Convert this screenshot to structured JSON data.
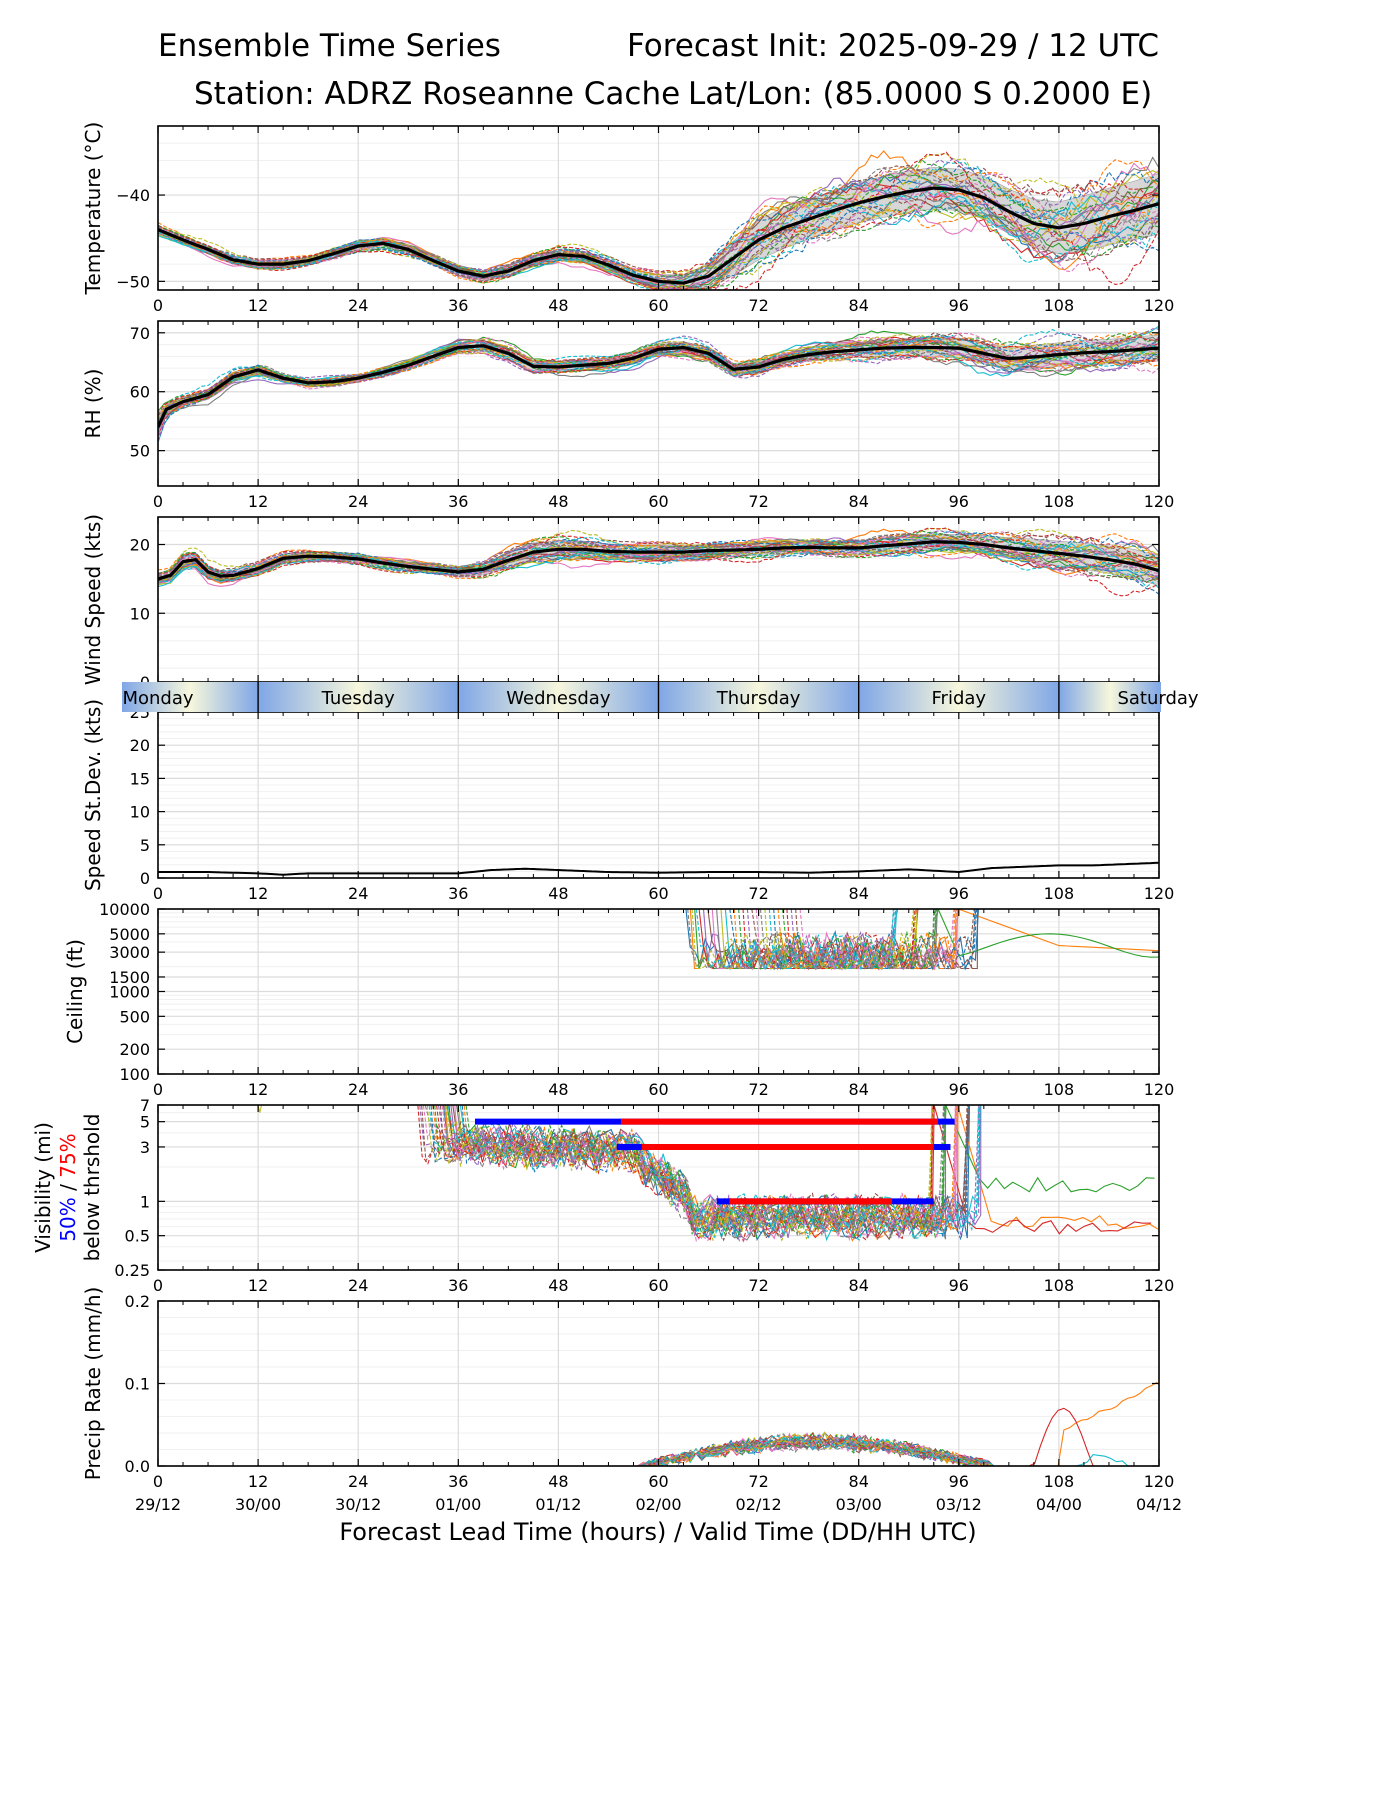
{
  "header": {
    "title_left": "Ensemble Time Series",
    "title_right": "Forecast Init: 2025-09-29 / 12 UTC",
    "station": "Station: ADRZ Roseanne Cache",
    "latlon": "Lat/Lon: (85.0000 S 0.2000 E)"
  },
  "chart_data": {
    "type": "line",
    "title": "Ensemble Time Series",
    "xlabel": "Forecast Lead Time (hours) / Valid Time (DD/HH UTC)",
    "x_ticks": [
      0,
      12,
      24,
      36,
      48,
      60,
      72,
      84,
      96,
      108,
      120
    ],
    "x_tick_labels": [
      "0",
      "12",
      "24",
      "36",
      "48",
      "60",
      "72",
      "84",
      "96",
      "108",
      "120"
    ],
    "valid_time_labels": [
      "29/12",
      "30/00",
      "30/12",
      "01/00",
      "01/12",
      "02/00",
      "02/12",
      "03/00",
      "03/12",
      "04/00",
      "04/12"
    ],
    "xlim": [
      0,
      120
    ],
    "days": [
      "Monday",
      "Tuesday",
      "Wednesday",
      "Thursday",
      "Friday",
      "Saturday"
    ],
    "panels": [
      {
        "id": "temp",
        "ylabel": "Temperature (°C)",
        "ylim": [
          -51,
          -32
        ],
        "yticks": [
          -50,
          -40
        ],
        "ytick_labels": [
          "−50",
          "−40"
        ],
        "mean_x": [
          0,
          3,
          6,
          9,
          12,
          15,
          18,
          21,
          24,
          27,
          30,
          33,
          36,
          39,
          42,
          45,
          48,
          51,
          54,
          57,
          60,
          63,
          66,
          69,
          72,
          75,
          78,
          81,
          84,
          87,
          90,
          93,
          96,
          99,
          102,
          105,
          108,
          111,
          114,
          117,
          120
        ],
        "mean_y": [
          -44,
          -45.2,
          -46.3,
          -47.5,
          -48,
          -48,
          -47.6,
          -46.8,
          -45.9,
          -45.6,
          -46.3,
          -47.6,
          -48.8,
          -49.4,
          -48.8,
          -47.6,
          -46.9,
          -47.1,
          -48.1,
          -49.3,
          -50,
          -50.2,
          -49.4,
          -47.3,
          -45.2,
          -43.8,
          -42.8,
          -41.8,
          -40.9,
          -40.2,
          -39.6,
          -39.2,
          -39.4,
          -40.3,
          -41.9,
          -43.3,
          -43.8,
          -43.3,
          -42.5,
          -41.8,
          -41
        ],
        "spread": [
          0.5,
          0.4,
          0.4,
          0.4,
          0.4,
          0.4,
          0.4,
          0.5,
          0.5,
          0.5,
          0.5,
          0.5,
          0.5,
          0.5,
          0.6,
          0.6,
          0.6,
          0.6,
          0.7,
          0.7,
          0.8,
          1.0,
          1.4,
          2.0,
          2.3,
          2.4,
          2.3,
          2.3,
          2.3,
          2.4,
          2.4,
          2.4,
          2.4,
          2.5,
          2.6,
          2.8,
          3.0,
          3.2,
          3.3,
          3.4,
          3.5
        ]
      },
      {
        "id": "rh",
        "ylabel": "RH (%)",
        "ylim": [
          44,
          72
        ],
        "yticks": [
          50,
          60,
          70
        ],
        "ytick_labels": [
          "50",
          "60",
          "70"
        ],
        "mean_x": [
          0,
          1,
          3,
          6,
          9,
          12,
          15,
          18,
          21,
          24,
          27,
          30,
          33,
          36,
          39,
          42,
          45,
          48,
          51,
          54,
          57,
          60,
          63,
          66,
          69,
          72,
          75,
          78,
          81,
          84,
          87,
          90,
          93,
          96,
          99,
          102,
          105,
          108,
          111,
          114,
          117,
          120
        ],
        "mean_y": [
          54,
          57,
          58.3,
          59.5,
          62.5,
          63.7,
          62.3,
          61.5,
          61.7,
          62.3,
          63.3,
          64.5,
          66,
          67.5,
          67.8,
          66.5,
          64.3,
          64.2,
          64.5,
          64.8,
          65.7,
          67.2,
          67.5,
          66.5,
          63.8,
          64.2,
          65.5,
          66.3,
          66.8,
          67.1,
          67.4,
          67.5,
          67.5,
          67.4,
          66.5,
          65.6,
          65.9,
          66.3,
          66.6,
          66.8,
          67.1,
          67.4
        ],
        "spread": [
          1.6,
          1.0,
          0.8,
          0.8,
          0.8,
          0.8,
          0.6,
          0.5,
          0.5,
          0.5,
          0.6,
          0.6,
          0.7,
          0.8,
          0.9,
          0.9,
          0.9,
          0.9,
          0.9,
          0.9,
          1.0,
          1.0,
          1.0,
          1.0,
          1.0,
          1.0,
          1.0,
          1.1,
          1.2,
          1.3,
          1.4,
          1.5,
          1.6,
          1.7,
          1.8,
          1.9,
          2.0,
          2.0,
          2.1,
          2.1,
          2.2,
          2.2
        ]
      },
      {
        "id": "wind",
        "ylabel": "Wind Speed (kts)",
        "ylim": [
          0,
          24
        ],
        "yticks": [
          0,
          10,
          20
        ],
        "ytick_labels": [
          "0",
          "10",
          "20"
        ],
        "mean_x": [
          0,
          1.5,
          3,
          4.5,
          6,
          7.5,
          9,
          12,
          15,
          18,
          21,
          24,
          27,
          30,
          33,
          36,
          39,
          42,
          45,
          48,
          51,
          54,
          57,
          60,
          63,
          66,
          69,
          72,
          75,
          78,
          81,
          84,
          87,
          90,
          93,
          96,
          99,
          102,
          105,
          108,
          111,
          114,
          117,
          120
        ],
        "mean_y": [
          15,
          15.5,
          17.5,
          17.8,
          16,
          15.4,
          15.5,
          16.5,
          18,
          18.3,
          18.2,
          17.9,
          17.3,
          16.8,
          16.4,
          16,
          16.4,
          17.7,
          18.9,
          19.3,
          19.3,
          19,
          18.9,
          18.9,
          18.9,
          19.1,
          19.2,
          19.3,
          19.5,
          19.6,
          19.5,
          19.5,
          19.8,
          20.1,
          20.4,
          20.3,
          20,
          19.5,
          19.1,
          18.7,
          18.3,
          17.8,
          17.2,
          16.2
        ],
        "spread": [
          0.8,
          0.8,
          0.9,
          0.9,
          0.8,
          0.7,
          0.7,
          0.7,
          0.6,
          0.6,
          0.6,
          0.6,
          0.6,
          0.6,
          0.6,
          0.6,
          0.8,
          1.1,
          1.3,
          1.3,
          1.2,
          1.1,
          1.0,
          1.0,
          0.9,
          0.9,
          0.9,
          0.9,
          0.9,
          0.9,
          0.9,
          1.0,
          1.1,
          1.2,
          1.2,
          1.1,
          1.3,
          1.5,
          1.7,
          1.8,
          1.9,
          2.0,
          2.1,
          2.2
        ]
      },
      {
        "id": "stddev",
        "ylabel": "Speed St.Dev. (kts)",
        "ylim": [
          0,
          25
        ],
        "yticks": [
          0,
          5,
          10,
          15,
          20,
          25
        ],
        "ytick_labels": [
          "0",
          "5",
          "10",
          "15",
          "20",
          "25"
        ],
        "mean_x": [
          0,
          6,
          12,
          15,
          18,
          24,
          30,
          36,
          40,
          44,
          48,
          54,
          60,
          66,
          72,
          78,
          84,
          90,
          96,
          100,
          104,
          108,
          112,
          116,
          120
        ],
        "mean_y": [
          0.9,
          0.9,
          0.7,
          0.5,
          0.7,
          0.7,
          0.7,
          0.7,
          1.2,
          1.4,
          1.2,
          0.9,
          0.8,
          0.9,
          0.9,
          0.8,
          1.0,
          1.3,
          0.9,
          1.5,
          1.7,
          1.9,
          1.9,
          2.1,
          2.3
        ]
      },
      {
        "id": "ceiling",
        "ylabel": "Ceiling (ft)",
        "scale": "log",
        "ylim": [
          100,
          10000
        ],
        "yticks": [
          100,
          200,
          500,
          1000,
          1500,
          3000,
          5000,
          10000
        ],
        "ytick_labels": [
          "100",
          "200",
          "500",
          "1000",
          "1500",
          "3000",
          "5000",
          "10000"
        ]
      },
      {
        "id": "vis",
        "ylabel": "Visibility (mi)",
        "ylabel_pct_50": "50%",
        "ylabel_sep": " / ",
        "ylabel_pct_75": "75%",
        "ylabel_thresh": "below thrshold",
        "scale": "log",
        "ylim": [
          0.25,
          7
        ],
        "yticks": [
          0.25,
          0.5,
          1,
          3,
          5,
          7
        ],
        "ytick_labels": [
          "0.25",
          "0.5",
          "1",
          "3",
          "5",
          "7"
        ],
        "thresholds": [
          {
            "level": 5,
            "p50": [
              38,
              95.5
            ],
            "p75": [
              55.5,
              93.5
            ]
          },
          {
            "level": 3,
            "p50": [
              55,
              95
            ],
            "p75": [
              58,
              93
            ]
          },
          {
            "level": 1,
            "p50": [
              67,
              93
            ],
            "p75": [
              68.5,
              88
            ]
          }
        ]
      },
      {
        "id": "precip",
        "ylabel": "Precip Rate (mm/h)",
        "ylim": [
          0,
          0.2
        ],
        "yticks": [
          0.0,
          0.1,
          0.2
        ],
        "ytick_labels": [
          "0.0",
          "0.1",
          "0.2"
        ]
      }
    ]
  }
}
